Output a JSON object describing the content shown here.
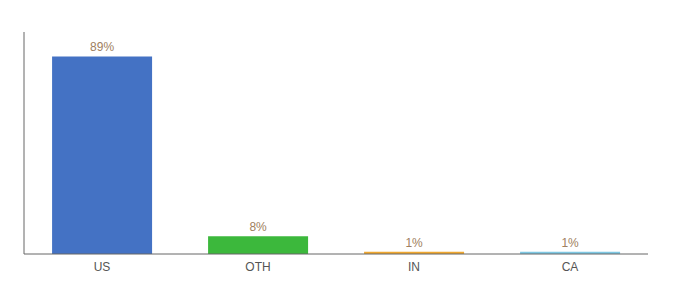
{
  "chart_data": {
    "type": "bar",
    "categories": [
      "US",
      "OTH",
      "IN",
      "CA"
    ],
    "values": [
      89,
      8,
      1,
      1
    ],
    "value_labels": [
      "89%",
      "8%",
      "1%",
      "1%"
    ],
    "data_labels": true,
    "colors": [
      "#4472c4",
      "#3cb83c",
      "#f0a830",
      "#7ec8e3"
    ],
    "ylim": [
      0,
      100
    ],
    "tick_labels": "x",
    "grid": false
  }
}
